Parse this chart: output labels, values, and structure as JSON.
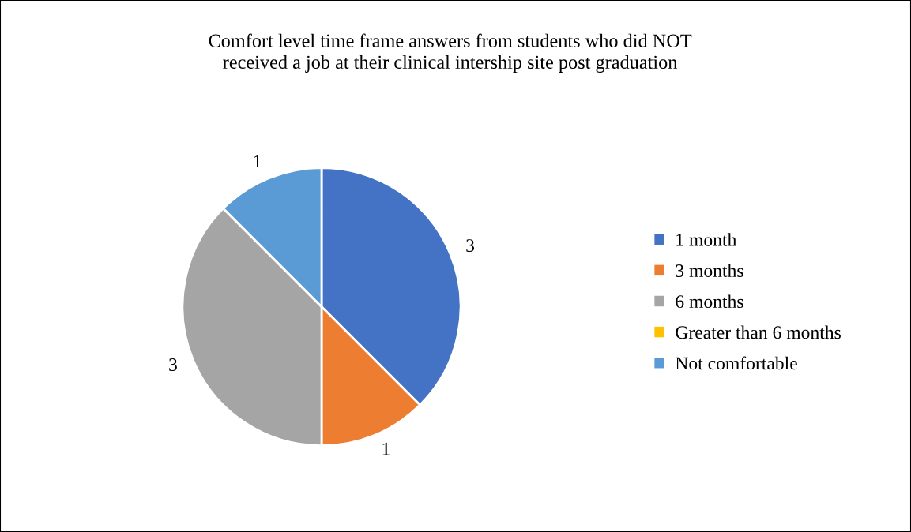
{
  "chart_data": {
    "type": "pie",
    "title": "Comfort level time frame answers from students who did NOT\nreceived a job at their clinical intership site post graduation",
    "categories": [
      "1 month",
      "3 months",
      "6 months",
      "Greater than 6 months",
      "Not comfortable"
    ],
    "values": [
      3,
      1,
      3,
      0,
      1
    ],
    "colors": [
      "#4472c4",
      "#ed7d31",
      "#a5a5a5",
      "#ffc000",
      "#5b9bd5"
    ],
    "value_labels": [
      "3",
      "1",
      "3",
      null,
      "1"
    ],
    "legend": "right"
  }
}
